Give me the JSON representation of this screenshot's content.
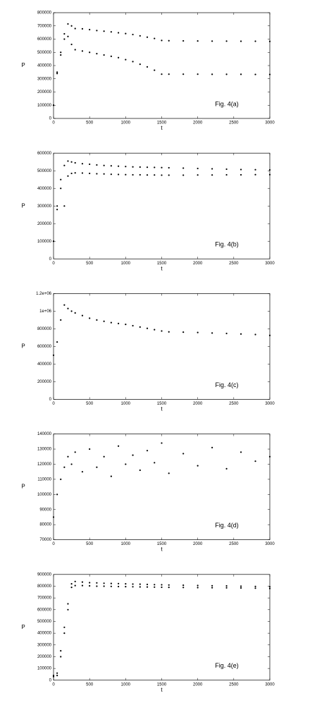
{
  "chart_data": [
    {
      "type": "scatter",
      "annotation": "Fig. 4(a)",
      "x_label": "t",
      "y_label": "P",
      "x": [
        0,
        50,
        100,
        150,
        200,
        250,
        300,
        400,
        500,
        600,
        700,
        800,
        900,
        1000,
        1100,
        1200,
        1300,
        1400,
        1500,
        1600,
        1800,
        2000,
        2200,
        2400,
        2600,
        2800,
        3000
      ],
      "series": [
        {
          "color": "#000000",
          "values": [
            100000,
            350000,
            500000,
            640000,
            715000,
            700000,
            680000,
            678000,
            672000,
            665000,
            660000,
            655000,
            648000,
            642000,
            635000,
            625000,
            615000,
            605000,
            590000,
            588000,
            587000,
            586000,
            585000,
            585000,
            584000,
            584000,
            583000
          ]
        },
        {
          "color": "#000000",
          "values": [
            100000,
            340000,
            480000,
            600000,
            620000,
            560000,
            520000,
            510000,
            500000,
            490000,
            480000,
            470000,
            460000,
            445000,
            430000,
            410000,
            390000,
            365000,
            335000,
            335000,
            335000,
            335000,
            334000,
            334000,
            334000,
            333000,
            333000
          ]
        }
      ],
      "xlim": [
        0,
        3000
      ],
      "xticks": [
        0,
        500,
        1000,
        1500,
        2000,
        2500,
        3000
      ],
      "ylim": [
        0,
        800000
      ],
      "yticks": [
        0,
        100000,
        200000,
        300000,
        400000,
        500000,
        600000,
        700000,
        800000
      ]
    },
    {
      "type": "scatter",
      "annotation": "Fig. 4(b)",
      "x_label": "t",
      "y_label": "P",
      "x": [
        0,
        50,
        100,
        150,
        200,
        250,
        300,
        400,
        500,
        600,
        700,
        800,
        900,
        1000,
        1100,
        1200,
        1300,
        1400,
        1500,
        1600,
        1800,
        2000,
        2200,
        2400,
        2600,
        2800,
        3000
      ],
      "series": [
        {
          "color": "#000000",
          "values": [
            100000,
            300000,
            450000,
            530000,
            555000,
            550000,
            545000,
            540000,
            537000,
            533000,
            530000,
            528000,
            526000,
            524000,
            522000,
            521000,
            520000,
            519000,
            518000,
            517000,
            515000,
            513000,
            511000,
            509000,
            507000,
            506000,
            505000
          ]
        },
        {
          "color": "#000000",
          "values": [
            100000,
            280000,
            400000,
            300000,
            470000,
            485000,
            488000,
            487000,
            485000,
            483000,
            482000,
            480000,
            479000,
            478000,
            477000,
            477000,
            476000,
            476000,
            475000,
            475000,
            475000,
            476000,
            476000,
            477000,
            477000,
            478000,
            478000
          ]
        }
      ],
      "xlim": [
        0,
        3000
      ],
      "xticks": [
        0,
        500,
        1000,
        1500,
        2000,
        2500,
        3000
      ],
      "ylim": [
        0,
        600000
      ],
      "yticks": [
        0,
        100000,
        200000,
        300000,
        400000,
        500000,
        600000
      ]
    },
    {
      "type": "scatter",
      "annotation": "Fig. 4(c)",
      "x_label": "t",
      "y_label": "P",
      "x": [
        0,
        50,
        100,
        150,
        200,
        250,
        300,
        400,
        500,
        600,
        700,
        800,
        900,
        1000,
        1100,
        1200,
        1300,
        1400,
        1500,
        1600,
        1800,
        2000,
        2200,
        2400,
        2600,
        2800,
        3000
      ],
      "series": [
        {
          "color": "#000000",
          "values": [
            500000,
            650000,
            900000,
            1070000,
            1030000,
            1000000,
            980000,
            950000,
            920000,
            900000,
            885000,
            870000,
            860000,
            850000,
            835000,
            820000,
            805000,
            790000,
            775000,
            765000,
            762000,
            758000,
            752000,
            747000,
            741000,
            735000,
            725000
          ]
        }
      ],
      "xlim": [
        0,
        3000
      ],
      "xticks": [
        0,
        500,
        1000,
        1500,
        2000,
        2500,
        3000
      ],
      "ylim": [
        0,
        1200000
      ],
      "yticks": [
        0,
        200000,
        400000,
        600000,
        800000,
        {
          "value": 1000000,
          "label": "1e+06"
        },
        {
          "value": 1200000,
          "label": "1.2e+06"
        }
      ]
    },
    {
      "type": "scatter",
      "annotation": "Fig. 4(d)",
      "x_label": "t",
      "y_label": "P",
      "x": [
        0,
        50,
        100,
        150,
        200,
        250,
        300,
        400,
        500,
        600,
        700,
        800,
        900,
        1000,
        1100,
        1200,
        1300,
        1400,
        1500,
        1600,
        1800,
        2000,
        2200,
        2400,
        2600,
        2800,
        3000
      ],
      "series": [
        {
          "color": "#000000",
          "values": [
            85000,
            100000,
            110000,
            118000,
            125000,
            120000,
            128000,
            115000,
            130000,
            118000,
            125000,
            112000,
            132000,
            120000,
            126000,
            116000,
            129000,
            121000,
            134000,
            114000,
            127000,
            119000,
            131000,
            117000,
            128000,
            122000,
            125000
          ]
        }
      ],
      "xlim": [
        0,
        3000
      ],
      "xticks": [
        0,
        500,
        1000,
        1500,
        2000,
        2500,
        3000
      ],
      "ylim": [
        70000,
        140000
      ],
      "yticks": [
        70000,
        80000,
        90000,
        100000,
        110000,
        120000,
        130000,
        140000
      ]
    },
    {
      "type": "scatter",
      "annotation": "Fig. 4(e)",
      "x_label": "t",
      "y_label": "P",
      "x": [
        0,
        50,
        100,
        150,
        200,
        250,
        300,
        400,
        500,
        600,
        700,
        800,
        900,
        1000,
        1100,
        1200,
        1300,
        1400,
        1500,
        1600,
        1800,
        2000,
        2200,
        2400,
        2600,
        2800,
        3000
      ],
      "series": [
        {
          "color": "#000000",
          "values": [
            40000,
            60000,
            250000,
            450000,
            650000,
            820000,
            840000,
            835000,
            830000,
            828000,
            825000,
            823000,
            822000,
            820000,
            818000,
            817000,
            815000,
            813000,
            812000,
            810000,
            808000,
            806000,
            804000,
            802000,
            800000,
            798000,
            795000
          ]
        },
        {
          "color": "#000000",
          "values": [
            30000,
            40000,
            200000,
            400000,
            600000,
            790000,
            805000,
            805000,
            803000,
            800000,
            800000,
            798000,
            797000,
            796000,
            795000,
            794000,
            793000,
            792000,
            791000,
            790000,
            789000,
            788000,
            787000,
            786000,
            785000,
            783000,
            780000
          ]
        }
      ],
      "xlim": [
        0,
        3000
      ],
      "xticks": [
        0,
        500,
        1000,
        1500,
        2000,
        2500,
        3000
      ],
      "ylim": [
        0,
        900000
      ],
      "yticks": [
        0,
        100000,
        200000,
        300000,
        400000,
        500000,
        600000,
        700000,
        800000,
        900000
      ]
    }
  ]
}
